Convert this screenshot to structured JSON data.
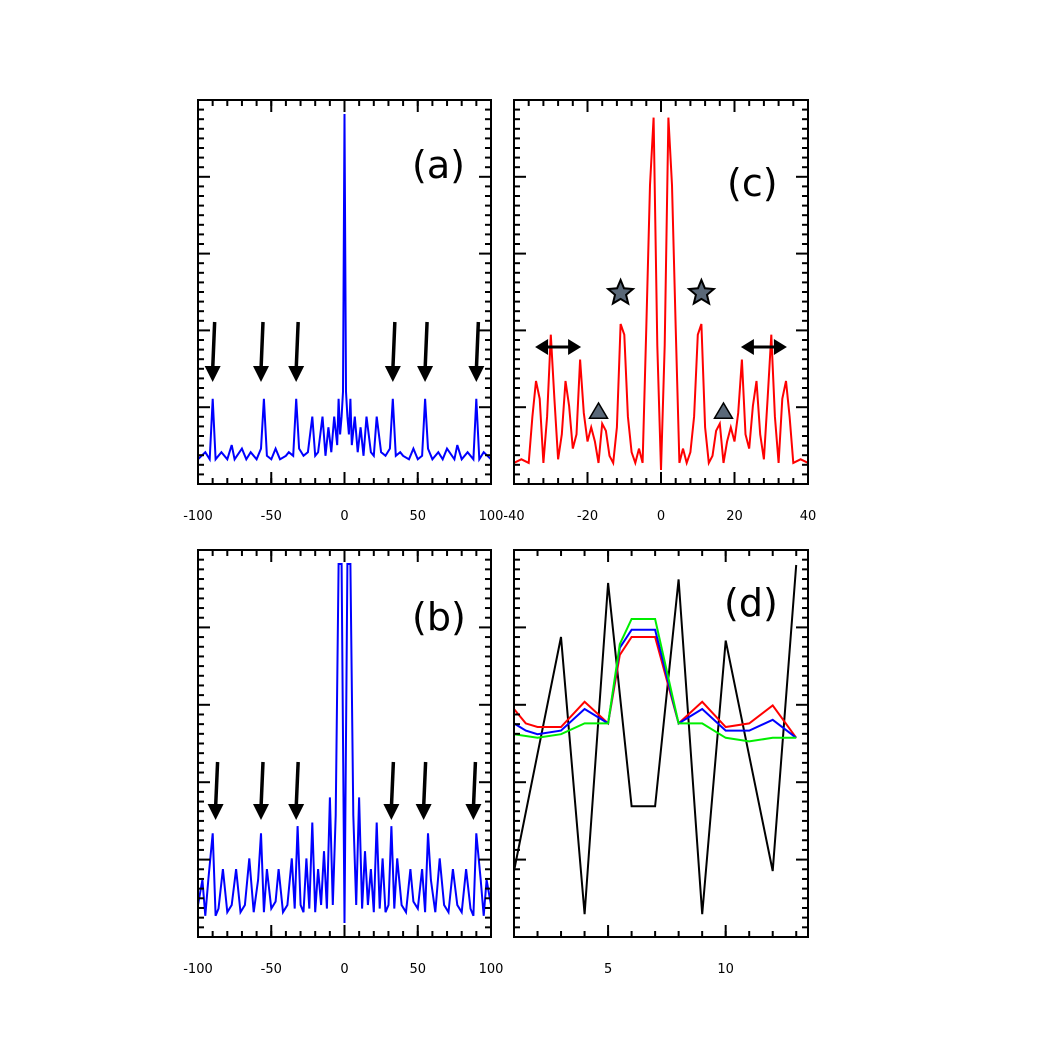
{
  "colors": {
    "blue": "#0000ff",
    "red": "#ff0000",
    "green": "#00ee00",
    "black": "#000000",
    "marker": "#5a6878"
  },
  "chart_data": [
    {
      "panel": "(a)",
      "type": "line",
      "xlim": [
        -100,
        100
      ],
      "ylim": [
        0,
        1
      ],
      "xticks": [
        "-100",
        "-50",
        "0",
        "50",
        "100"
      ],
      "ylabel": "",
      "xlabel": "",
      "grid": false,
      "series": [
        {
          "color": "blue",
          "x": [
            -100,
            -95,
            -92,
            -90,
            -88,
            -84,
            -80,
            -77,
            -75,
            -70,
            -67,
            -64,
            -60,
            -57,
            -55,
            -53,
            -50,
            -47,
            -44,
            -40,
            -38,
            -35,
            -33,
            -31,
            -28,
            -25,
            -22,
            -20,
            -18,
            -15,
            -13,
            -11,
            -9,
            -7,
            -5,
            -4,
            -3,
            -2,
            -1,
            0,
            1,
            2,
            3,
            4,
            5,
            7,
            9,
            11,
            13,
            15,
            18,
            20,
            22,
            25,
            28,
            31,
            33,
            35,
            38,
            40,
            44,
            47,
            50,
            53,
            55,
            57,
            60,
            64,
            67,
            70,
            75,
            77,
            80,
            84,
            88,
            90,
            92,
            95,
            100
          ],
          "y": [
            0.03,
            0.05,
            0.03,
            0.2,
            0.03,
            0.05,
            0.03,
            0.07,
            0.03,
            0.06,
            0.03,
            0.05,
            0.03,
            0.06,
            0.2,
            0.04,
            0.03,
            0.06,
            0.03,
            0.04,
            0.05,
            0.04,
            0.2,
            0.06,
            0.04,
            0.05,
            0.15,
            0.04,
            0.05,
            0.15,
            0.04,
            0.12,
            0.05,
            0.15,
            0.07,
            0.2,
            0.1,
            0.15,
            0.22,
            1.0,
            0.22,
            0.15,
            0.1,
            0.2,
            0.07,
            0.15,
            0.05,
            0.12,
            0.04,
            0.15,
            0.05,
            0.04,
            0.15,
            0.05,
            0.04,
            0.06,
            0.2,
            0.04,
            0.05,
            0.04,
            0.03,
            0.06,
            0.03,
            0.04,
            0.2,
            0.06,
            0.03,
            0.05,
            0.03,
            0.06,
            0.03,
            0.07,
            0.03,
            0.05,
            0.03,
            0.2,
            0.03,
            0.05,
            0.03
          ]
        }
      ],
      "annotations": {
        "down_arrows_at_x": [
          -90,
          -57,
          -33,
          33,
          55,
          90
        ]
      }
    },
    {
      "panel": "(b)",
      "type": "line",
      "xlim": [
        -100,
        100
      ],
      "ylim": [
        0,
        1
      ],
      "xticks": [
        "-100",
        "-50",
        "0",
        "50",
        "100"
      ],
      "ylabel": "",
      "xlabel": "",
      "grid": false,
      "series": [
        {
          "color": "blue",
          "x": [
            -100,
            -97,
            -95,
            -93,
            -90,
            -88,
            -86,
            -83,
            -80,
            -77,
            -74,
            -71,
            -68,
            -65,
            -62,
            -59,
            -57,
            -55,
            -53,
            -50,
            -47,
            -45,
            -42,
            -39,
            -36,
            -34,
            -32,
            -30,
            -28,
            -26,
            -24,
            -22,
            -20,
            -18,
            -16,
            -14,
            -12,
            -10,
            -8,
            -6,
            -4,
            -2,
            0,
            2,
            4,
            6,
            8,
            10,
            12,
            14,
            16,
            18,
            20,
            22,
            24,
            26,
            28,
            30,
            32,
            34,
            36,
            39,
            42,
            45,
            47,
            50,
            53,
            55,
            57,
            59,
            62,
            65,
            68,
            71,
            74,
            77,
            80,
            83,
            86,
            88,
            90,
            93,
            95,
            97,
            100
          ],
          "y": [
            0.05,
            0.12,
            0.02,
            0.12,
            0.25,
            0.02,
            0.04,
            0.15,
            0.03,
            0.05,
            0.15,
            0.03,
            0.05,
            0.18,
            0.03,
            0.12,
            0.25,
            0.03,
            0.15,
            0.04,
            0.06,
            0.15,
            0.03,
            0.05,
            0.18,
            0.04,
            0.27,
            0.05,
            0.03,
            0.18,
            0.04,
            0.28,
            0.03,
            0.15,
            0.05,
            0.2,
            0.04,
            0.35,
            0.05,
            0.3,
            1.0,
            1.0,
            0.0,
            1.0,
            1.0,
            0.3,
            0.05,
            0.35,
            0.04,
            0.2,
            0.05,
            0.15,
            0.03,
            0.28,
            0.04,
            0.18,
            0.03,
            0.05,
            0.27,
            0.04,
            0.18,
            0.05,
            0.03,
            0.15,
            0.06,
            0.04,
            0.15,
            0.03,
            0.25,
            0.12,
            0.03,
            0.18,
            0.05,
            0.03,
            0.15,
            0.05,
            0.03,
            0.15,
            0.04,
            0.02,
            0.25,
            0.12,
            0.02,
            0.12,
            0.05
          ]
        }
      ],
      "annotations": {
        "down_arrows_at_x": [
          -88,
          -57,
          -33,
          32,
          54,
          88
        ]
      }
    },
    {
      "panel": "(c)",
      "type": "line",
      "xlim": [
        -40,
        40
      ],
      "ylim": [
        0,
        1
      ],
      "xticks": [
        "-40",
        "-20",
        "0",
        "20",
        "40"
      ],
      "ylabel": "",
      "xlabel": "",
      "grid": false,
      "series": [
        {
          "color": "red",
          "x": [
            -40,
            -38,
            -36,
            -35,
            -34,
            -33,
            -32,
            -31,
            -30,
            -29,
            -28,
            -27,
            -26,
            -25,
            -24,
            -23,
            -22,
            -21,
            -20,
            -19,
            -18,
            -17,
            -16,
            -15,
            -14,
            -13,
            -12,
            -11,
            -10,
            -9,
            -8,
            -7,
            -6,
            -5,
            -4,
            -3,
            -2,
            -1,
            0,
            1,
            2,
            3,
            4,
            5,
            6,
            7,
            8,
            9,
            10,
            11,
            12,
            13,
            14,
            15,
            16,
            17,
            18,
            19,
            20,
            21,
            22,
            23,
            24,
            25,
            26,
            27,
            28,
            29,
            30,
            31,
            32,
            33,
            34,
            35,
            36,
            38,
            40
          ],
          "y": [
            0.02,
            0.03,
            0.02,
            0.15,
            0.25,
            0.2,
            0.02,
            0.15,
            0.38,
            0.2,
            0.03,
            0.1,
            0.25,
            0.18,
            0.06,
            0.1,
            0.31,
            0.16,
            0.08,
            0.12,
            0.08,
            0.02,
            0.13,
            0.11,
            0.04,
            0.02,
            0.12,
            0.41,
            0.38,
            0.15,
            0.05,
            0.02,
            0.06,
            0.02,
            0.4,
            0.8,
            0.99,
            0.35,
            0.0,
            0.35,
            0.99,
            0.8,
            0.4,
            0.02,
            0.06,
            0.02,
            0.05,
            0.15,
            0.38,
            0.41,
            0.12,
            0.02,
            0.04,
            0.11,
            0.13,
            0.02,
            0.08,
            0.12,
            0.08,
            0.16,
            0.31,
            0.1,
            0.06,
            0.18,
            0.25,
            0.1,
            0.03,
            0.2,
            0.38,
            0.15,
            0.02,
            0.2,
            0.25,
            0.15,
            0.02,
            0.03,
            0.02
          ]
        }
      ],
      "annotations": {
        "double_arrows_at_x": [
          -28,
          28
        ],
        "stars_at_x": [
          -11,
          11
        ],
        "triangles_at_x": [
          -17,
          17
        ]
      }
    },
    {
      "panel": "(d)",
      "type": "line",
      "xlim": [
        1,
        13.5
      ],
      "ylim": [
        0,
        1
      ],
      "xticks": [
        "5",
        "10"
      ],
      "ylabel": "",
      "xlabel": "",
      "grid": false,
      "series": [
        {
          "color": "black",
          "x": [
            1,
            3,
            4,
            5,
            6,
            7,
            8,
            9,
            10,
            12,
            13
          ],
          "y": [
            0.15,
            0.8,
            0.03,
            0.95,
            0.33,
            0.33,
            0.96,
            0.03,
            0.79,
            0.15,
            1.0
          ]
        },
        {
          "color": "red",
          "x": [
            1,
            1.5,
            2,
            3,
            4,
            5,
            5.5,
            6,
            7,
            8,
            9,
            10,
            11,
            12,
            13
          ],
          "y": [
            0.6,
            0.56,
            0.55,
            0.55,
            0.62,
            0.56,
            0.75,
            0.8,
            0.8,
            0.56,
            0.62,
            0.55,
            0.56,
            0.61,
            0.52
          ]
        },
        {
          "color": "blue",
          "x": [
            1,
            1.5,
            2,
            3,
            4,
            5,
            5.5,
            6,
            7,
            8,
            9,
            10,
            11,
            12,
            13
          ],
          "y": [
            0.56,
            0.54,
            0.53,
            0.54,
            0.6,
            0.56,
            0.77,
            0.82,
            0.82,
            0.56,
            0.6,
            0.54,
            0.54,
            0.57,
            0.52
          ]
        },
        {
          "color": "green",
          "x": [
            1,
            2,
            3,
            4,
            5,
            5.5,
            6,
            7,
            8,
            9,
            10,
            11,
            12,
            13
          ],
          "y": [
            0.53,
            0.52,
            0.53,
            0.56,
            0.56,
            0.78,
            0.85,
            0.85,
            0.56,
            0.56,
            0.52,
            0.51,
            0.52,
            0.52
          ]
        }
      ]
    }
  ]
}
